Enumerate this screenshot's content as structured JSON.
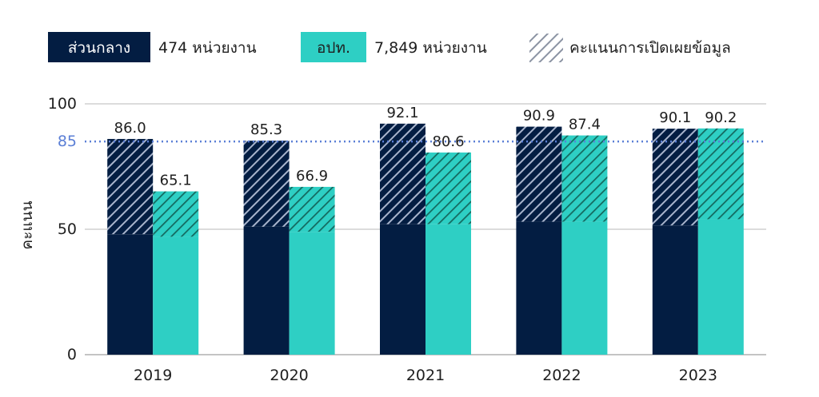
{
  "chart_data": {
    "type": "bar",
    "categories": [
      "2019",
      "2020",
      "2021",
      "2022",
      "2023"
    ],
    "series": [
      {
        "name": "ส่วนกลาง",
        "legend_note": "474 หน่วยงาน",
        "color": "#031d42",
        "values": [
          86.0,
          85.3,
          92.1,
          90.9,
          90.1
        ],
        "labels": [
          "86.0",
          "85.3",
          "92.1",
          "90.9",
          "90.1"
        ],
        "solid_values": [
          48,
          51,
          52,
          53,
          51.5
        ]
      },
      {
        "name": "อปท.",
        "legend_note": "7,849 หน่วยงาน",
        "color": "#2ecfc4",
        "values": [
          65.1,
          66.9,
          80.6,
          87.4,
          90.2
        ],
        "labels": [
          "65.1",
          "66.9",
          "80.6",
          "87.4",
          "90.2"
        ],
        "solid_values": [
          47,
          49,
          52,
          53,
          54
        ]
      }
    ],
    "hatch_legend": "คะแนนการเปิดเผยข้อมูล",
    "reference_line": {
      "value": 85,
      "label": "85",
      "color": "#5b7fd6"
    },
    "ylabel": "คะแนน",
    "ylim": [
      0,
      100
    ],
    "yticks": [
      "0",
      "50",
      "100"
    ],
    "grid": true,
    "legend_position": "top"
  }
}
